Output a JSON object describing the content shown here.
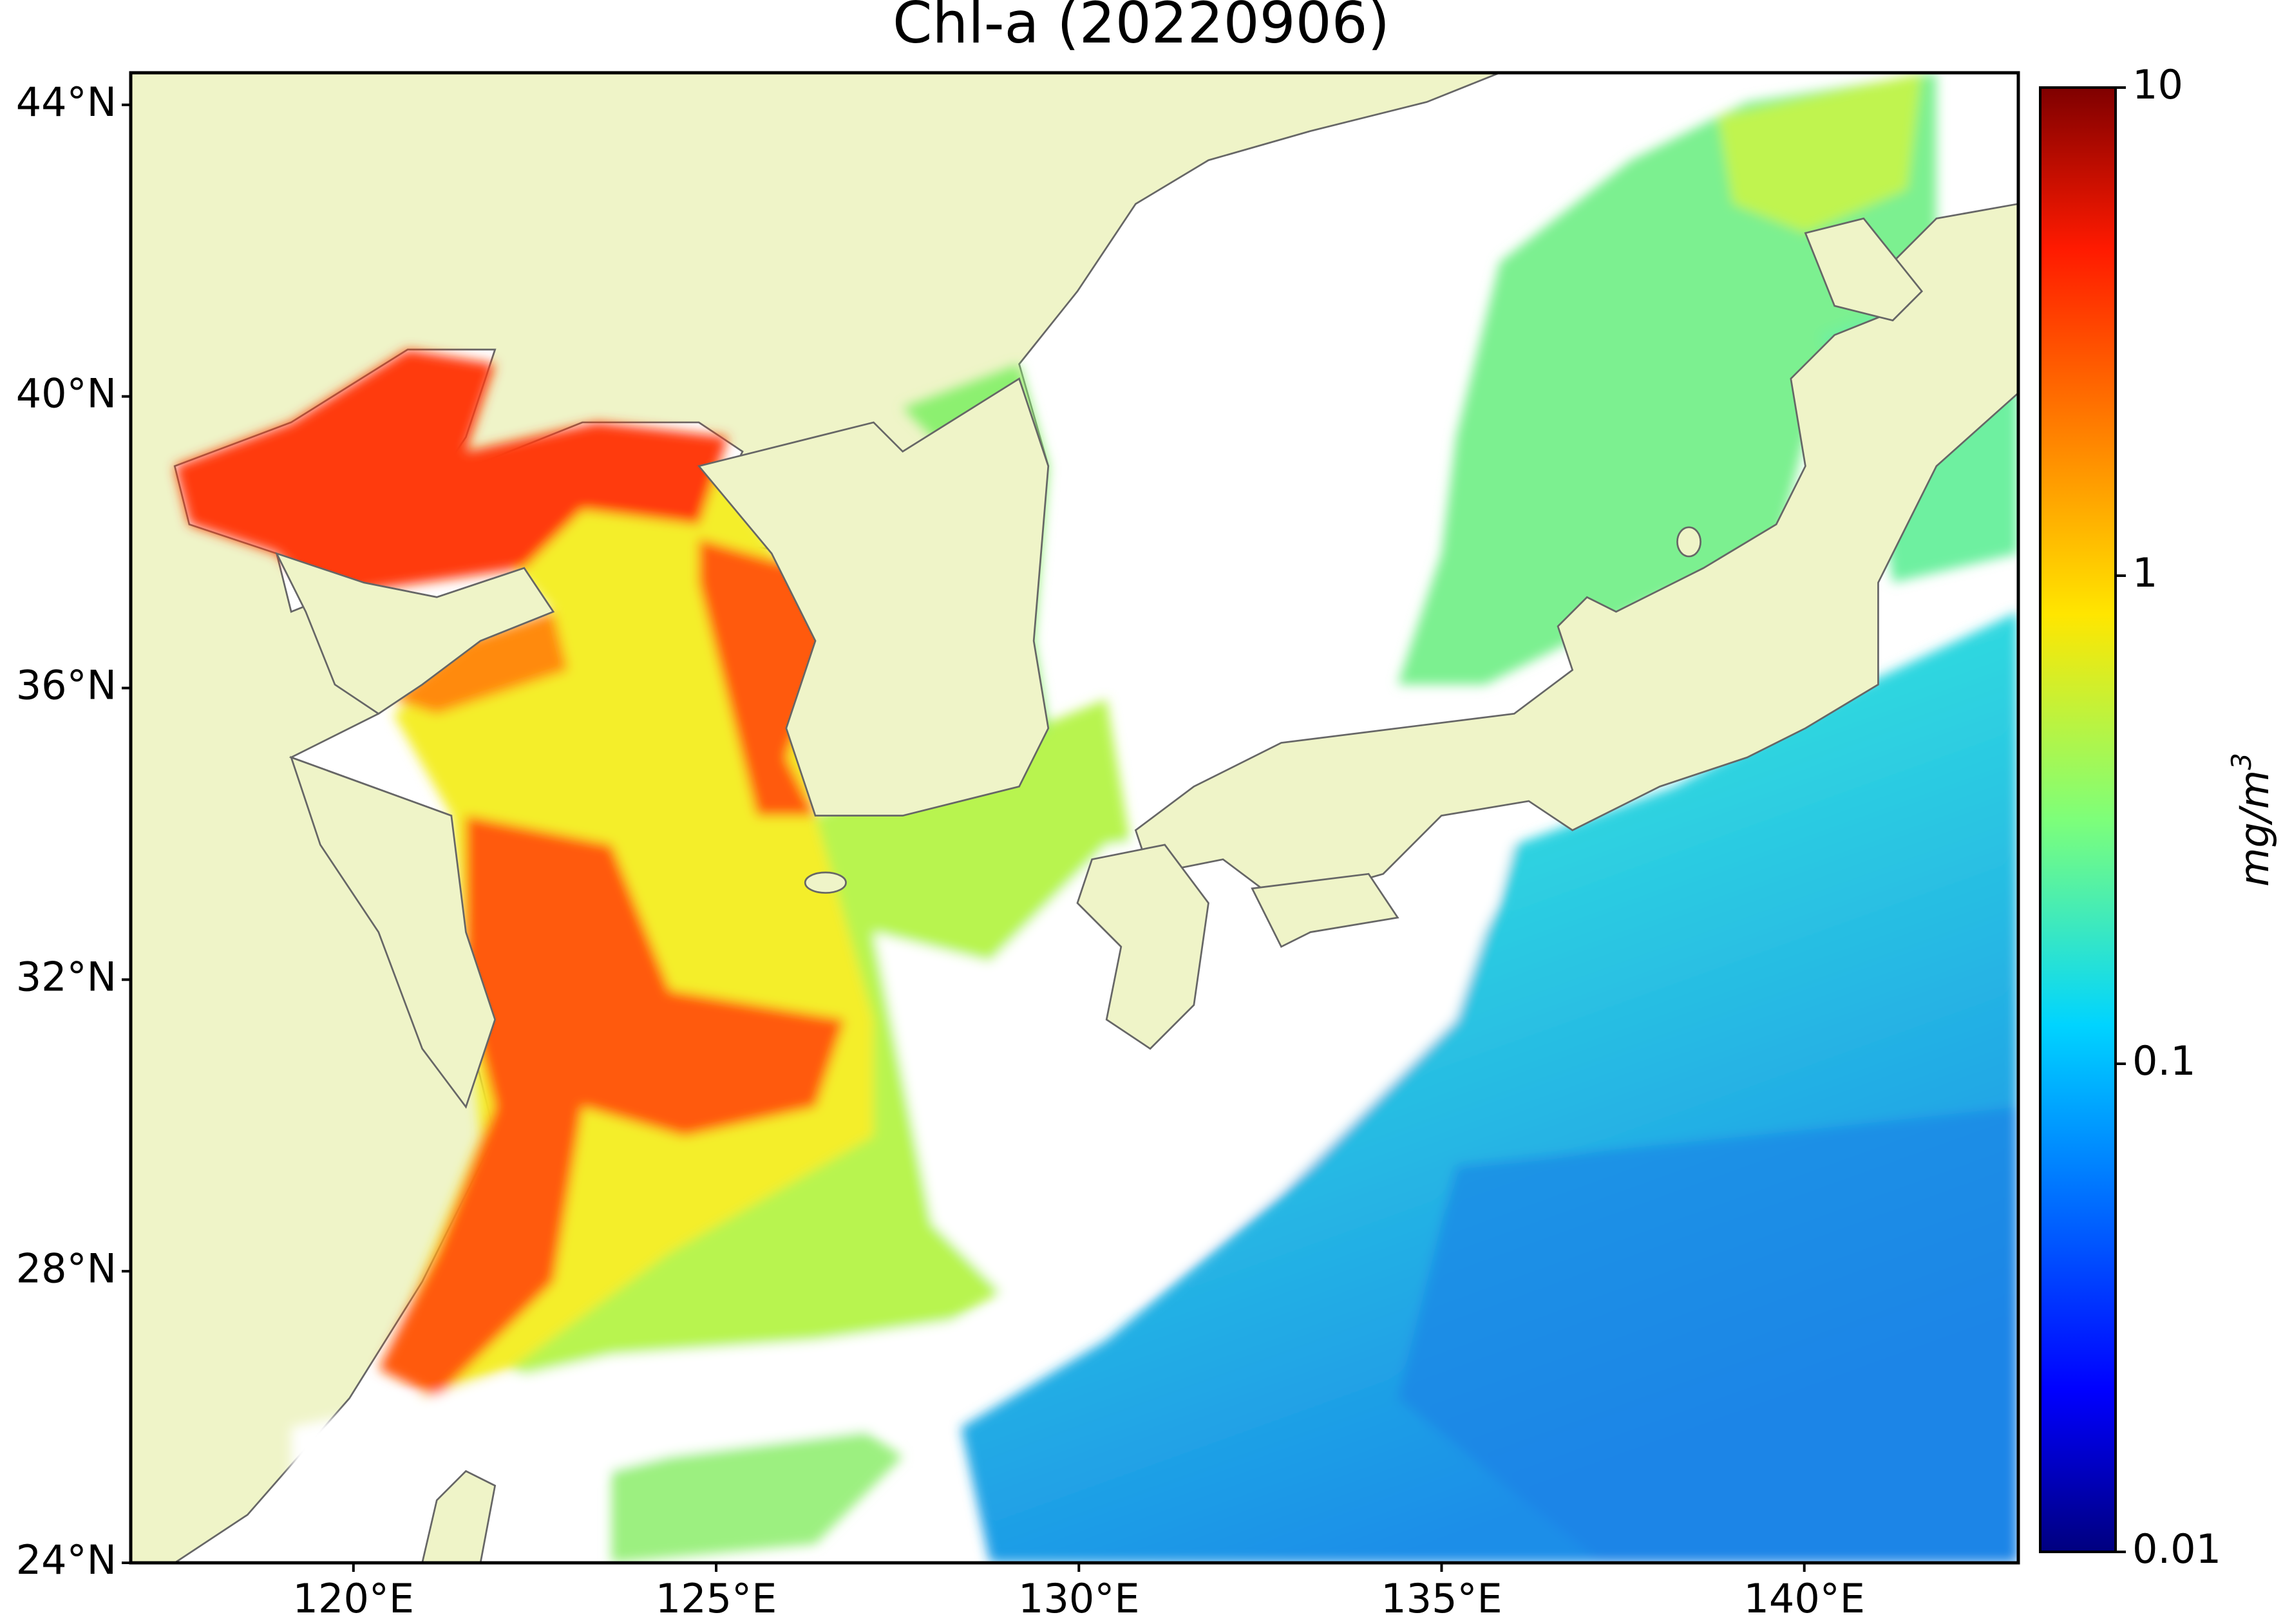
{
  "title": "Chl-a (20220906)",
  "map": {
    "xlim": [
      116.93,
      142.95
    ],
    "ylim": [
      24,
      44.44
    ],
    "xticks": [
      {
        "value": 120,
        "label": "120°E"
      },
      {
        "value": 125,
        "label": "125°E"
      },
      {
        "value": 130,
        "label": "130°E"
      },
      {
        "value": 135,
        "label": "135°E"
      },
      {
        "value": 140,
        "label": "140°E"
      }
    ],
    "yticks": [
      {
        "value": 24,
        "label": "24°N"
      },
      {
        "value": 28,
        "label": "28°N"
      },
      {
        "value": 32,
        "label": "32°N"
      },
      {
        "value": 36,
        "label": "36°N"
      },
      {
        "value": 40,
        "label": "40°N"
      },
      {
        "value": 44,
        "label": "44°N"
      }
    ]
  },
  "colorbar": {
    "scale": "log",
    "range": [
      0.01,
      10
    ],
    "ticks": [
      0.01,
      0.1,
      1,
      10
    ],
    "label": "mg/m",
    "label_superscript": "3"
  }
}
